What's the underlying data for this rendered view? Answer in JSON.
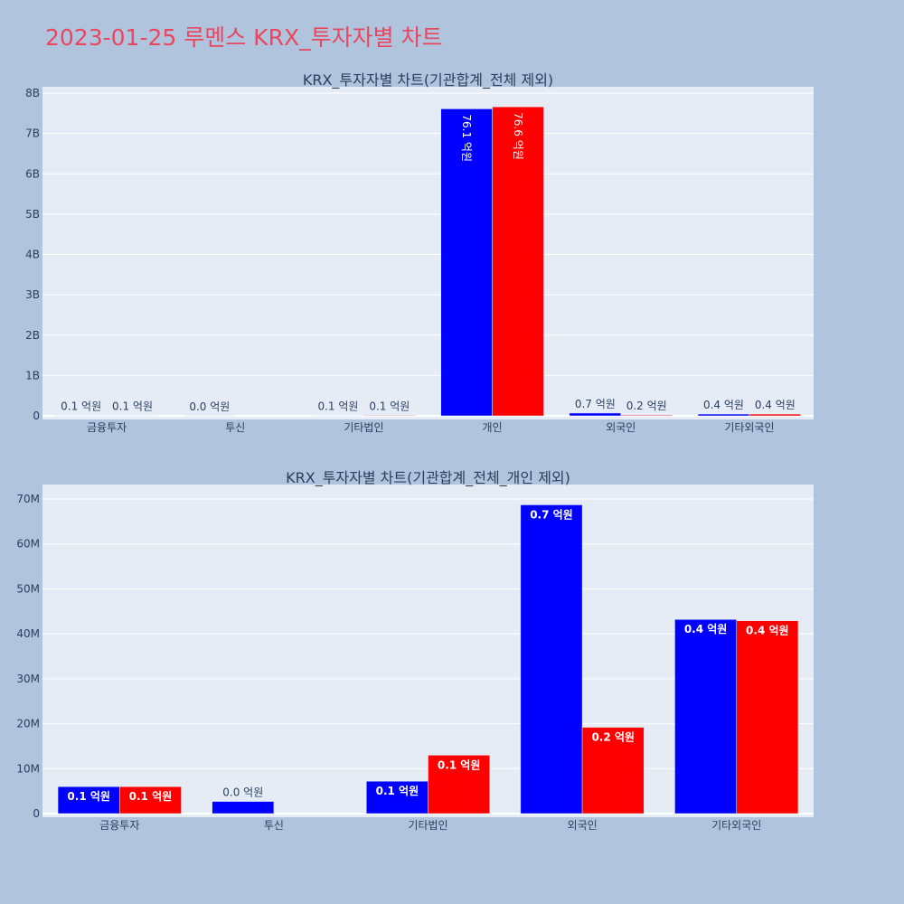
{
  "page": {
    "title": "2023-01-25 루멘스 KRX_투자자별 차트",
    "title_color": "#e8475f",
    "background": "#b0c4de"
  },
  "colors": {
    "series_a": "#0000ff",
    "series_b": "#ff0000",
    "plot_bg": "#e5ecf6",
    "text": "#2a3f5f"
  },
  "chart_data": [
    {
      "type": "bar",
      "title": "KRX_투자자별 차트(기관합계_전체 제외)",
      "categories": [
        "금융투자",
        "투신",
        "기타법인",
        "개인",
        "외국인",
        "기타외국인"
      ],
      "series": [
        {
          "color": "#0000ff",
          "values": [
            6000000,
            2700000,
            7200000,
            7610000000,
            68700000,
            43200000
          ],
          "labels": [
            "0.1 억원",
            "0.0 억원",
            "0.1 억원",
            "76.1 억원",
            "0.7 억원",
            "0.4 억원"
          ]
        },
        {
          "color": "#ff0000",
          "values": [
            6000000,
            0,
            13000000,
            7660000000,
            19200000,
            42900000
          ],
          "labels": [
            "0.1 억원",
            "",
            "0.1 억원",
            "76.6 억원",
            "0.2 억원",
            "0.4 억원"
          ]
        }
      ],
      "ylim": [
        0,
        8100000000
      ],
      "yticks": [
        0,
        1000000000,
        2000000000,
        3000000000,
        4000000000,
        5000000000,
        6000000000,
        7000000000,
        8000000000
      ],
      "ytick_labels": [
        "0",
        "1B",
        "2B",
        "3B",
        "4B",
        "5B",
        "6B",
        "7B",
        "8B"
      ],
      "grid": true,
      "legend": "none"
    },
    {
      "type": "bar",
      "title": "KRX_투자자별 차트(기관합계_전체_개인 제외)",
      "categories": [
        "금융투자",
        "투신",
        "기타법인",
        "외국인",
        "기타외국인"
      ],
      "series": [
        {
          "color": "#0000ff",
          "values": [
            6000000,
            2700000,
            7200000,
            68700000,
            43200000
          ],
          "labels": [
            "0.1 억원",
            "0.0 억원",
            "0.1 억원",
            "0.7 억원",
            "0.4 억원"
          ]
        },
        {
          "color": "#ff0000",
          "values": [
            6000000,
            0,
            13000000,
            19200000,
            42900000
          ],
          "labels": [
            "0.1 억원",
            "",
            "0.1 억원",
            "0.2 억원",
            "0.4 억원"
          ]
        }
      ],
      "ylim": [
        0,
        73000000
      ],
      "yticks": [
        0,
        10000000,
        20000000,
        30000000,
        40000000,
        50000000,
        60000000,
        70000000
      ],
      "ytick_labels": [
        "0",
        "10M",
        "20M",
        "30M",
        "40M",
        "50M",
        "60M",
        "70M"
      ],
      "grid": true,
      "legend": "none"
    }
  ]
}
